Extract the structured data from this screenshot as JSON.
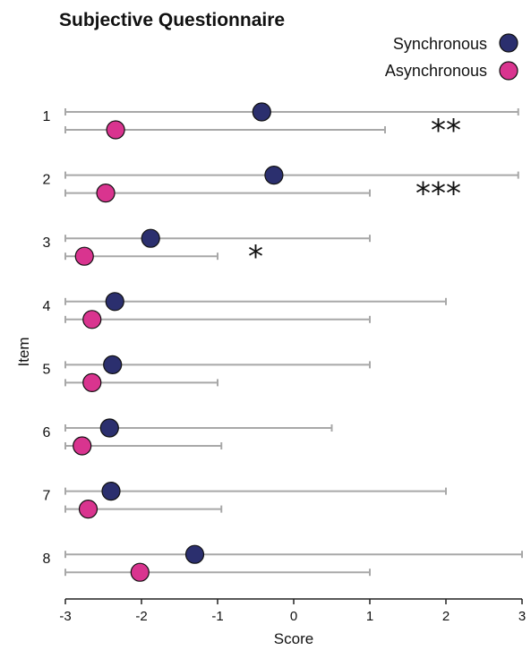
{
  "chart_data": {
    "type": "scatter",
    "title": "Subjective Questionnaire",
    "xlabel": "Score",
    "ylabel": "Item",
    "xlim": [
      -3,
      3
    ],
    "x_ticks": [
      "-3",
      "-2",
      "-1",
      "0",
      "1",
      "2",
      "3"
    ],
    "categories": [
      "1",
      "2",
      "3",
      "4",
      "5",
      "6",
      "7",
      "8"
    ],
    "legend_position": "top-right",
    "series": [
      {
        "name": "Synchronous",
        "color": "#2b2f6e",
        "values": [
          -0.42,
          -0.26,
          -1.88,
          -2.35,
          -2.38,
          -2.42,
          -2.4,
          -1.3
        ],
        "error_low": [
          -3,
          -3,
          -3,
          -3,
          -3,
          -3,
          -3,
          -3
        ],
        "error_high": [
          2.95,
          2.95,
          1.0,
          2.0,
          1.0,
          0.5,
          2.0,
          3.0
        ]
      },
      {
        "name": "Asynchronous",
        "color": "#d9348f",
        "values": [
          -2.34,
          -2.47,
          -2.75,
          -2.65,
          -2.65,
          -2.78,
          -2.7,
          -2.02
        ],
        "error_low": [
          -3,
          -3,
          -3,
          -3,
          -3,
          -3,
          -3,
          -3
        ],
        "error_high": [
          1.2,
          1.0,
          -1.0,
          1.0,
          -1.0,
          -0.95,
          -0.95,
          1.0
        ]
      }
    ],
    "significance": [
      {
        "item": "1",
        "label": "**",
        "x": 2.0
      },
      {
        "item": "2",
        "label": "***",
        "x": 1.9
      },
      {
        "item": "3",
        "label": "*",
        "x": -0.5
      }
    ]
  }
}
